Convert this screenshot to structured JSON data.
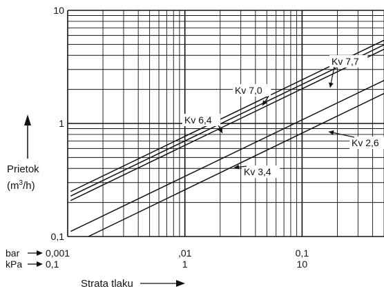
{
  "chart_data": {
    "type": "line",
    "scale": {
      "x": "log",
      "y": "log"
    },
    "xlim": [
      0.001,
      0.5
    ],
    "ylim": [
      0.1,
      10
    ],
    "grid": true,
    "x_ticks": [
      {
        "value": 0.001,
        "bar": "0,001",
        "kpa": "0,1"
      },
      {
        "value": 0.01,
        "bar": ",01",
        "kpa": "1"
      },
      {
        "value": 0.1,
        "bar": "0,1",
        "kpa": "10"
      }
    ],
    "y_ticks": [
      {
        "value": 10,
        "label": "10"
      },
      {
        "value": 1,
        "label": "1"
      },
      {
        "value": 0.1,
        "label": "0,1"
      }
    ],
    "x_unit_labels": {
      "bar": "bar",
      "kpa": "kPa"
    },
    "xlabel": "Strata tlaku",
    "ylabel": [
      "Prietok",
      "(m³/h)"
    ],
    "series": [
      {
        "name": "Kv 7,7",
        "kv": 7.7,
        "x": [
          0.00106,
          0.5
        ],
        "y": [
          0.25,
          5.44
        ]
      },
      {
        "name": "Kv 7,0",
        "kv": 7.0,
        "x": [
          0.00106,
          0.5
        ],
        "y": [
          0.228,
          4.95
        ]
      },
      {
        "name": "Kv 6,4",
        "kv": 6.4,
        "x": [
          0.00106,
          0.5
        ],
        "y": [
          0.208,
          4.53
        ]
      },
      {
        "name": "Kv 3,4",
        "kv": 3.4,
        "x": [
          0.00106,
          0.5
        ],
        "y": [
          0.111,
          2.4
        ]
      },
      {
        "name": "Kv 2,6",
        "kv": 2.6,
        "x": [
          0.0015,
          0.5
        ],
        "y": [
          0.1,
          1.84
        ]
      }
    ]
  }
}
